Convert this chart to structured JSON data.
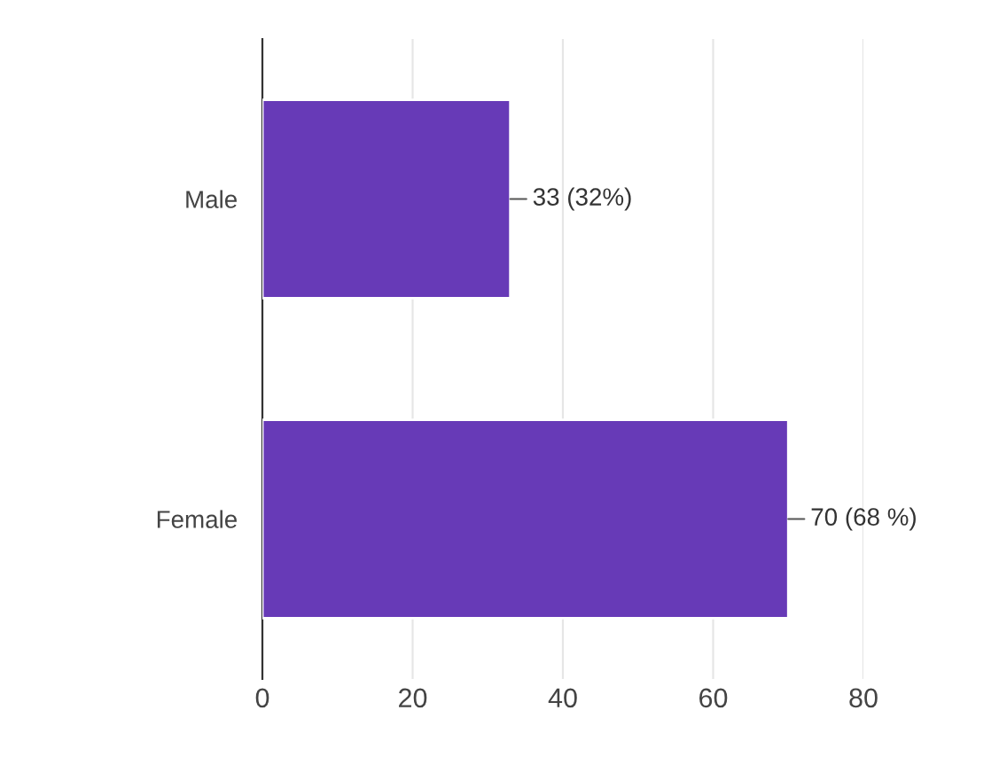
{
  "chart_data": {
    "type": "bar",
    "orientation": "horizontal",
    "categories": [
      "Male",
      "Female"
    ],
    "values": [
      33,
      70
    ],
    "value_labels": [
      "33 (32%)",
      "70 (68 %)"
    ],
    "color": "#673ab7",
    "xlim": [
      0,
      80
    ],
    "xticks": [
      0,
      20,
      40,
      60,
      80
    ],
    "grid": "x",
    "legend": false
  }
}
